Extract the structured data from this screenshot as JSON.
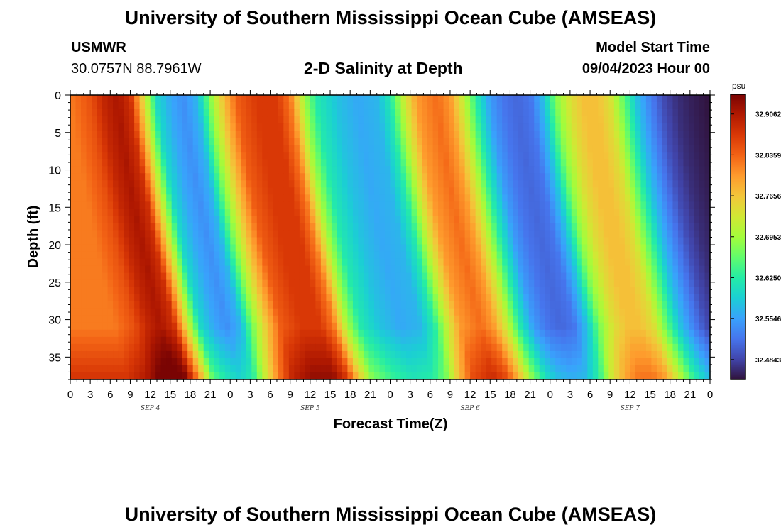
{
  "header": {
    "title": "University of Southern Mississippi Ocean Cube (AMSEAS)",
    "station": "USMWR",
    "coordinates": "30.0757N  88.7961W",
    "subtitle": "2-D Salinity at Depth",
    "model_start_label": "Model Start Time",
    "model_start_value": "09/04/2023 Hour 00"
  },
  "footer": {
    "title": "University of Southern Mississippi Ocean Cube (AMSEAS)"
  },
  "chart_data": {
    "type": "heatmap",
    "xlabel": "Forecast Time(Z)",
    "ylabel": "Depth (ft)",
    "x_tick_labels": [
      "0",
      "3",
      "6",
      "9",
      "12",
      "15",
      "18",
      "21",
      "0",
      "3",
      "6",
      "9",
      "12",
      "15",
      "18",
      "21",
      "0",
      "3",
      "6",
      "9",
      "12",
      "15",
      "18",
      "21",
      "0",
      "3",
      "6",
      "9",
      "12",
      "15",
      "18",
      "21",
      "0"
    ],
    "date_labels": [
      "SEP 4",
      "SEP 5",
      "SEP 6",
      "SEP 7"
    ],
    "xlim_hours": [
      0,
      96
    ],
    "y_ticks": [
      0,
      5,
      10,
      15,
      20,
      25,
      30,
      35
    ],
    "ylim_ft": [
      0,
      38
    ],
    "y_inverted": true,
    "colorbar": {
      "unit": "psu",
      "tick_labels": [
        "32.9062",
        "32.8359",
        "32.7656",
        "32.6953",
        "32.6250",
        "32.5546",
        "32.4843"
      ],
      "vmin": 32.45,
      "vmax": 32.94,
      "colors": [
        "#30123b",
        "#4145ab",
        "#4675ed",
        "#39a2fc",
        "#1bcfd4",
        "#24eca6",
        "#61fc6c",
        "#a4fc3b",
        "#d1e834",
        "#f3c63a",
        "#fe9b2d",
        "#f36315",
        "#d93806",
        "#b11901",
        "#7a0403"
      ]
    },
    "surface_salinity_by_hour": [
      [
        0,
        32.82
      ],
      [
        3,
        32.85
      ],
      [
        5,
        32.89
      ],
      [
        7,
        32.91
      ],
      [
        9,
        32.88
      ],
      [
        11,
        32.74
      ],
      [
        13,
        32.6
      ],
      [
        15,
        32.56
      ],
      [
        17,
        32.54
      ],
      [
        19,
        32.57
      ],
      [
        21,
        32.68
      ],
      [
        23,
        32.77
      ],
      [
        25,
        32.84
      ],
      [
        28,
        32.87
      ],
      [
        31,
        32.87
      ],
      [
        33,
        32.82
      ],
      [
        35,
        32.7
      ],
      [
        37,
        32.62
      ],
      [
        40,
        32.58
      ],
      [
        43,
        32.56
      ],
      [
        46,
        32.57
      ],
      [
        48,
        32.62
      ],
      [
        50,
        32.72
      ],
      [
        52,
        32.8
      ],
      [
        55,
        32.83
      ],
      [
        57,
        32.8
      ],
      [
        59,
        32.72
      ],
      [
        61,
        32.62
      ],
      [
        63,
        32.55
      ],
      [
        65,
        32.52
      ],
      [
        67,
        32.51
      ],
      [
        69,
        32.52
      ],
      [
        71,
        32.58
      ],
      [
        73,
        32.68
      ],
      [
        75,
        32.74
      ],
      [
        77,
        32.77
      ],
      [
        79,
        32.77
      ],
      [
        81,
        32.74
      ],
      [
        83,
        32.66
      ],
      [
        85,
        32.58
      ],
      [
        87,
        32.53
      ],
      [
        89,
        32.49
      ],
      [
        91,
        32.47
      ],
      [
        93,
        32.46
      ],
      [
        96,
        32.45
      ]
    ]
  }
}
